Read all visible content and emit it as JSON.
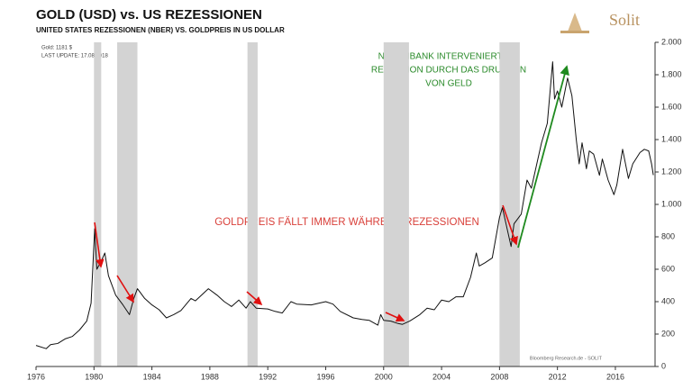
{
  "chart_data": {
    "type": "line",
    "title": "GOLD (USD) vs. US REZESSIONEN",
    "subtitle": "UNITED STATES REZESSIONEN (NBER) VS. GOLDPREIS IN US DOLLAR",
    "info": [
      "Gold: 1181 $",
      "LAST UPDATE: 17.08.2018"
    ],
    "logo": "Solit",
    "source": "Bloomberg Research.de - SOLIT",
    "annotations": {
      "red": "GOLDPREIS FÄLLT IMMER WÄHREND REZESSIONEN",
      "green": [
        "NOTENBANK INTERVENIERT BEI",
        "REZESSION DURCH DAS DRUCKEN",
        "VON GELD"
      ]
    },
    "color": "#111111",
    "recession_color": "#d3d3d3",
    "recessions": [
      [
        1980.0,
        1980.5
      ],
      [
        1981.6,
        1983.0
      ],
      [
        1990.6,
        1991.3
      ],
      [
        2000.0,
        2001.75
      ],
      [
        2008.0,
        2009.4
      ]
    ],
    "x": [
      1976.0,
      1976.7,
      1977.0,
      1977.5,
      1978.0,
      1978.5,
      1979.0,
      1979.5,
      1979.8,
      1980.05,
      1980.2,
      1980.5,
      1980.75,
      1981.0,
      1981.5,
      1982.0,
      1982.45,
      1982.75,
      1983.0,
      1983.5,
      1984.0,
      1984.5,
      1985.0,
      1985.5,
      1986.0,
      1986.7,
      1987.0,
      1987.9,
      1988.5,
      1989.0,
      1989.5,
      1990.0,
      1990.5,
      1990.8,
      1991.2,
      1992.0,
      1992.5,
      1993.0,
      1993.6,
      1994.0,
      1995.0,
      1996.0,
      1996.5,
      1997.0,
      1997.9,
      1998.5,
      1999.0,
      1999.6,
      1999.8,
      2000.0,
      2000.5,
      2001.0,
      2001.3,
      2001.8,
      2002.5,
      2003.0,
      2003.5,
      2004.0,
      2004.5,
      2005.0,
      2005.5,
      2006.0,
      2006.4,
      2006.6,
      2007.0,
      2007.5,
      2008.0,
      2008.2,
      2008.5,
      2008.8,
      2009.0,
      2009.5,
      2009.9,
      2010.2,
      2010.5,
      2010.9,
      2011.3,
      2011.67,
      2011.8,
      2012.0,
      2012.3,
      2012.7,
      2013.0,
      2013.3,
      2013.5,
      2013.7,
      2014.0,
      2014.2,
      2014.5,
      2014.9,
      2015.1,
      2015.5,
      2015.9,
      2016.1,
      2016.5,
      2016.9,
      2017.2,
      2017.7,
      2018.0,
      2018.3,
      2018.5,
      2018.62
    ],
    "values": [
      130,
      110,
      135,
      142,
      170,
      185,
      225,
      280,
      390,
      850,
      600,
      650,
      700,
      560,
      440,
      380,
      320,
      420,
      480,
      420,
      380,
      350,
      300,
      320,
      345,
      420,
      405,
      480,
      440,
      400,
      370,
      410,
      360,
      400,
      360,
      355,
      340,
      330,
      400,
      385,
      380,
      400,
      385,
      340,
      300,
      290,
      285,
      255,
      320,
      285,
      280,
      265,
      260,
      280,
      320,
      360,
      350,
      410,
      400,
      430,
      430,
      550,
      700,
      620,
      640,
      670,
      920,
      980,
      860,
      740,
      880,
      940,
      1150,
      1100,
      1220,
      1380,
      1500,
      1880,
      1650,
      1700,
      1600,
      1780,
      1670,
      1400,
      1250,
      1380,
      1220,
      1330,
      1310,
      1180,
      1280,
      1150,
      1060,
      1120,
      1340,
      1160,
      1250,
      1320,
      1340,
      1330,
      1250,
      1181
    ],
    "xlim": [
      1976,
      2018.74
    ],
    "xticks": [
      1976,
      1980,
      1984,
      1988,
      1992,
      1996,
      2000,
      2004,
      2008,
      2012,
      2016
    ],
    "ylim": [
      0,
      2000
    ],
    "yticks": [
      0,
      200,
      400,
      600,
      800,
      {
        "value": 1000,
        "label": "1.000"
      },
      {
        "value": 1200,
        "label": "1.200"
      },
      {
        "value": 1400,
        "label": "1.400"
      },
      {
        "value": 1600,
        "label": "1.600"
      },
      {
        "value": 1800,
        "label": "1.800"
      },
      {
        "value": 2000,
        "label": "2.000"
      }
    ]
  }
}
